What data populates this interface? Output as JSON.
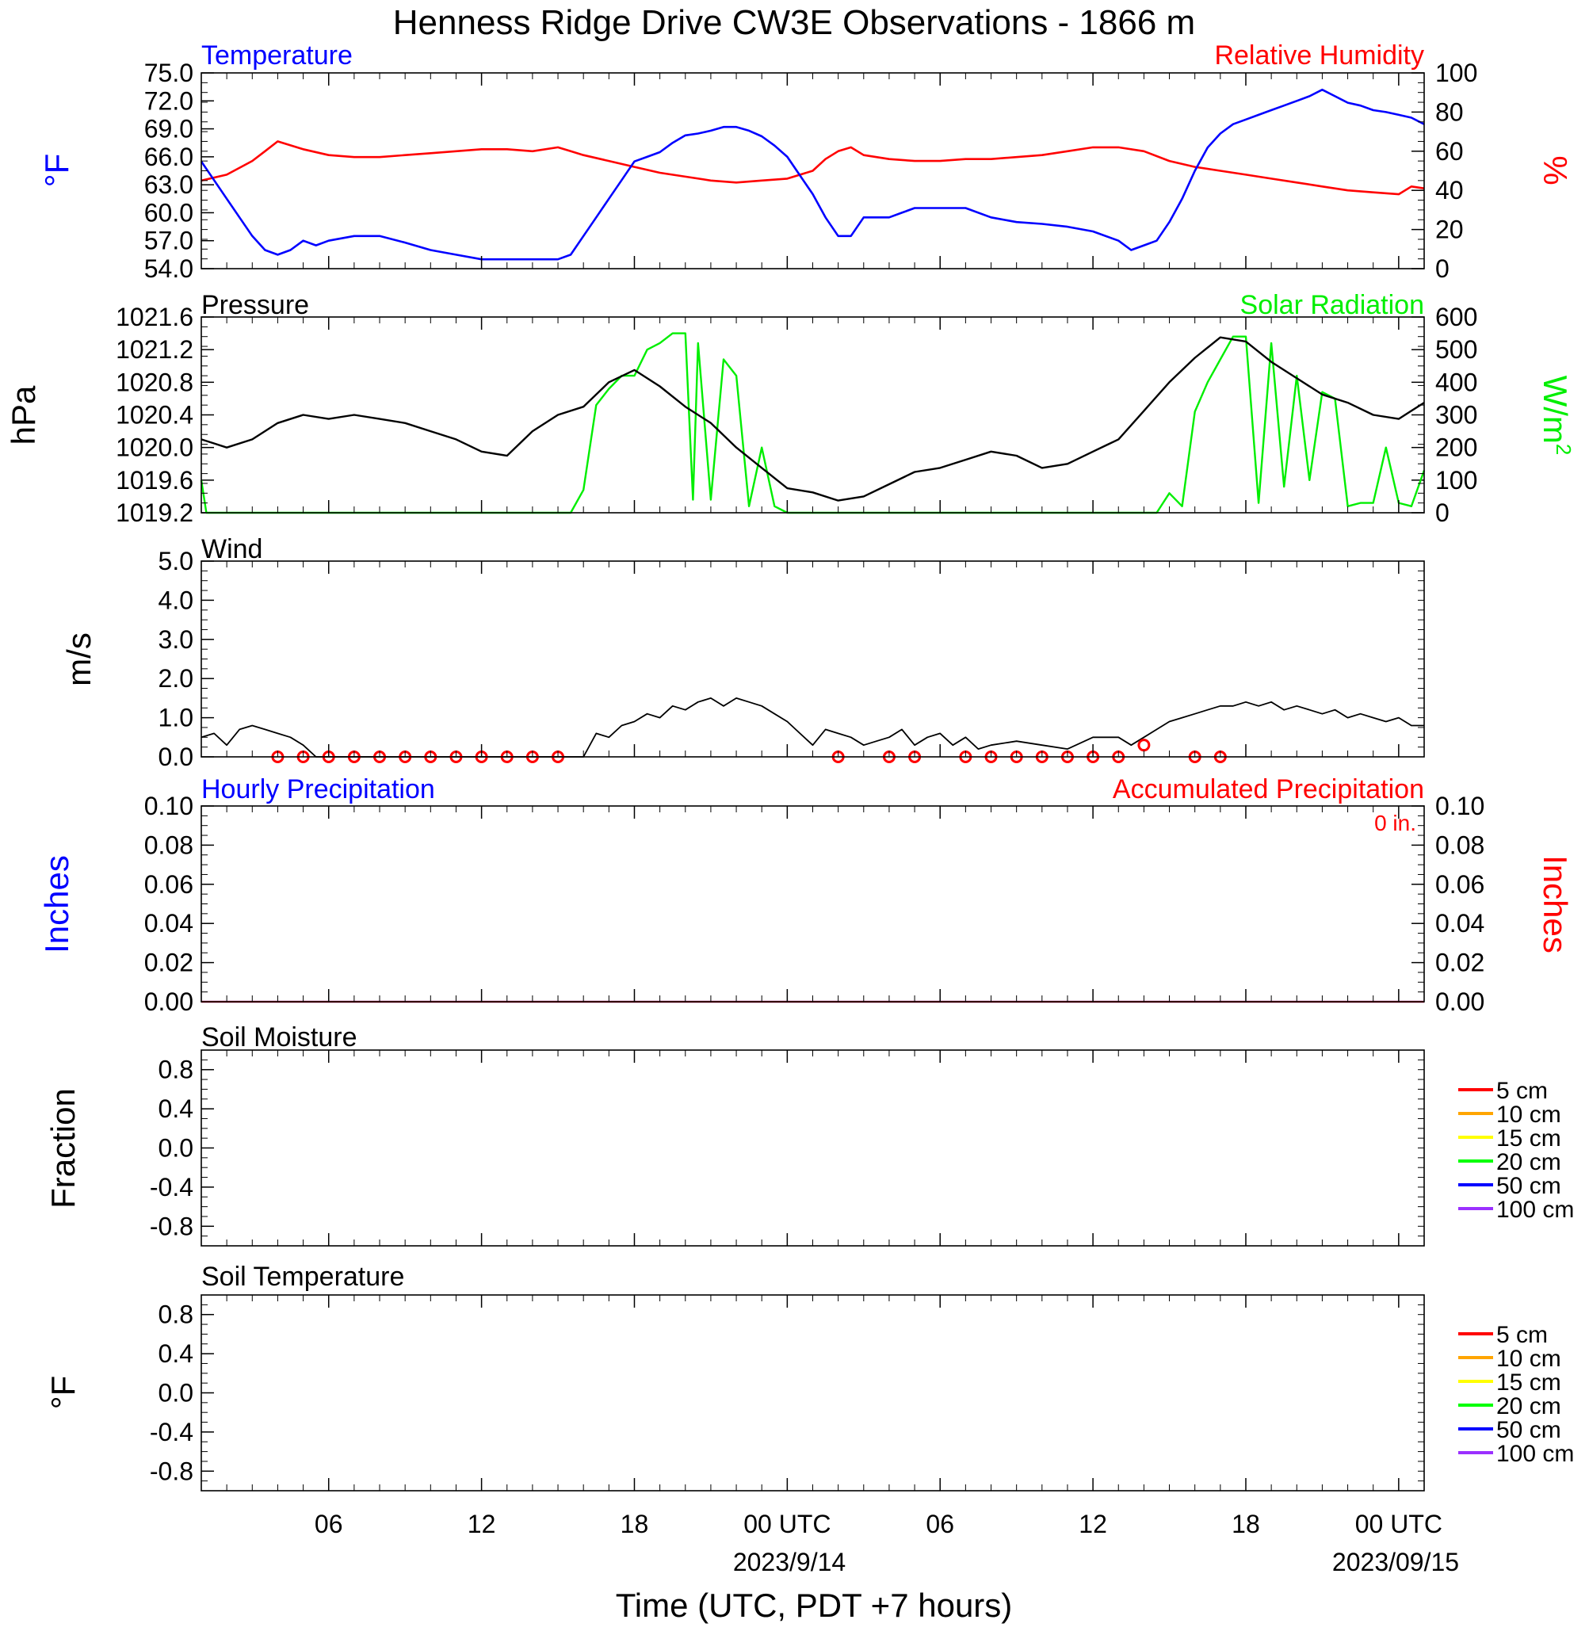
{
  "title": "Henness Ridge Drive CW3E Observations - 1866 m",
  "x_axis": {
    "label": "Time (UTC, PDT +7 hours)",
    "tick_labels": [
      "06",
      "12",
      "18",
      "00 UTC",
      "06",
      "12",
      "18",
      "00 UTC"
    ],
    "date_labels": [
      "2023/9/14",
      "2023/09/15"
    ],
    "range_hours_utc": [
      1,
      49
    ]
  },
  "colors": {
    "temperature": "#0000ff",
    "humidity": "#ff0000",
    "pressure": "#000000",
    "solar": "#00ee00",
    "wind": "#000000",
    "wind_barb": "#ff0000",
    "precip_hourly": "#0000ff",
    "precip_accum": "#ff0000"
  },
  "panels": {
    "temperature": {
      "left_title": "Temperature",
      "right_title": "Relative Humidity",
      "left_unit": "°F",
      "right_unit": "%",
      "left_ticks": [
        "75.0",
        "72.0",
        "69.0",
        "66.0",
        "63.0",
        "60.0",
        "57.0",
        "54.0"
      ],
      "right_ticks": [
        "100",
        "80",
        "60",
        "40",
        "20",
        "0"
      ]
    },
    "pressure": {
      "left_title": "Pressure",
      "right_title": "Solar Radiation",
      "left_unit": "hPa",
      "right_unit_main": "W/m",
      "right_unit_sup": "2",
      "left_ticks": [
        "1021.6",
        "1021.2",
        "1020.8",
        "1020.4",
        "1020.0",
        "1019.6",
        "1019.2"
      ],
      "right_ticks": [
        "600",
        "500",
        "400",
        "300",
        "200",
        "100",
        "0"
      ]
    },
    "wind": {
      "left_title": "Wind",
      "left_unit": "m/s",
      "left_ticks": [
        "5.0",
        "4.0",
        "3.0",
        "2.0",
        "1.0",
        "0.0"
      ]
    },
    "precip": {
      "left_title": "Hourly Precipitation",
      "right_title": "Accumulated Precipitation",
      "total_label": "0 in.",
      "left_unit": "Inches",
      "right_unit": "Inches",
      "left_ticks": [
        "0.10",
        "0.08",
        "0.06",
        "0.04",
        "0.02",
        "0.00"
      ],
      "right_ticks": [
        "0.10",
        "0.08",
        "0.06",
        "0.04",
        "0.02",
        "0.00"
      ]
    },
    "soil_moisture": {
      "left_title": "Soil Moisture",
      "left_unit": "Fraction",
      "left_ticks": [
        "0.8",
        "0.4",
        "0.0",
        "-0.4",
        "-0.8"
      ],
      "legend": [
        {
          "label": "5 cm",
          "color": "#ff0000"
        },
        {
          "label": "10 cm",
          "color": "#ffa500"
        },
        {
          "label": "15 cm",
          "color": "#ffff00"
        },
        {
          "label": "20 cm",
          "color": "#00ff00"
        },
        {
          "label": "50 cm",
          "color": "#0000ff"
        },
        {
          "label": "100 cm",
          "color": "#9b30ff"
        }
      ]
    },
    "soil_temperature": {
      "left_title": "Soil Temperature",
      "left_unit": "°F",
      "left_ticks": [
        "0.8",
        "0.4",
        "0.0",
        "-0.4",
        "-0.8"
      ],
      "legend": [
        {
          "label": "5 cm",
          "color": "#ff0000"
        },
        {
          "label": "10 cm",
          "color": "#ffa500"
        },
        {
          "label": "15 cm",
          "color": "#ffff00"
        },
        {
          "label": "20 cm",
          "color": "#00ff00"
        },
        {
          "label": "50 cm",
          "color": "#0000ff"
        },
        {
          "label": "100 cm",
          "color": "#9b30ff"
        }
      ]
    }
  },
  "chart_data": [
    {
      "type": "line",
      "title": "Temperature",
      "ylabel": "°F",
      "ylim": [
        54,
        75
      ],
      "x_units": "hours UTC from 2023/9/13 00",
      "series": [
        {
          "name": "Temperature",
          "x": [
            1,
            1.5,
            2,
            2.5,
            3,
            3.5,
            4,
            4.5,
            5,
            5.5,
            6,
            7,
            8,
            9,
            10,
            11,
            12,
            13,
            14,
            15,
            15.5,
            16,
            16.5,
            17,
            17.5,
            18,
            18.5,
            19,
            19.5,
            20,
            20.5,
            21,
            21.5,
            22,
            22.5,
            23,
            23.5,
            24,
            24.5,
            25,
            25.5,
            26,
            26.5,
            27,
            27.5,
            28,
            28.5,
            29,
            30,
            31,
            32,
            33,
            34,
            35,
            36,
            37,
            37.5,
            38,
            38.5,
            39,
            39.5,
            40,
            40.5,
            41,
            41.5,
            42,
            42.5,
            43,
            43.5,
            44,
            44.5,
            45,
            45.5,
            46,
            46.5,
            47,
            47.5,
            48,
            48.5,
            49
          ],
          "values": [
            65.5,
            63.5,
            61.5,
            59.5,
            57.5,
            56,
            55.5,
            56,
            57,
            56.5,
            57,
            57.5,
            57.5,
            56.8,
            56,
            55.5,
            55,
            55,
            55,
            55,
            55.5,
            57.5,
            59.5,
            61.5,
            63.5,
            65.5,
            66,
            66.5,
            67.5,
            68.3,
            68.5,
            68.8,
            69.2,
            69.2,
            68.8,
            68.2,
            67.2,
            66,
            64,
            62,
            59.5,
            57.5,
            57.5,
            59.5,
            59.5,
            59.5,
            60,
            60.5,
            60.5,
            60.5,
            59.5,
            59,
            58.8,
            58.5,
            58,
            57,
            56,
            56.5,
            57,
            59,
            61.5,
            64.5,
            67,
            68.5,
            69.5,
            70,
            70.5,
            71,
            71.5,
            72,
            72.5,
            73.2,
            72.5,
            71.8,
            71.5,
            71,
            70.8,
            70.5,
            70.2,
            69.5
          ]
        }
      ]
    },
    {
      "type": "line",
      "title": "Relative Humidity",
      "ylabel": "%",
      "ylim": [
        0,
        100
      ],
      "series": [
        {
          "name": "Relative Humidity",
          "x": [
            1,
            2,
            3,
            3.5,
            4,
            5,
            6,
            7,
            8,
            9,
            10,
            11,
            12,
            13,
            14,
            15,
            15.5,
            16,
            17,
            18,
            19,
            20,
            21,
            22,
            23,
            24,
            25,
            25.5,
            26,
            26.5,
            27,
            28,
            29,
            30,
            31,
            32,
            33,
            34,
            35,
            36,
            37,
            38,
            39,
            40,
            41,
            42,
            43,
            44,
            45,
            46,
            47,
            48,
            48.5,
            49
          ],
          "values": [
            45,
            48,
            55,
            60,
            65,
            61,
            58,
            57,
            57,
            58,
            59,
            60,
            61,
            61,
            60,
            62,
            60,
            58,
            55,
            52,
            49,
            47,
            45,
            44,
            45,
            46,
            50,
            56,
            60,
            62,
            58,
            56,
            55,
            55,
            56,
            56,
            57,
            58,
            60,
            62,
            62,
            60,
            55,
            52,
            50,
            48,
            46,
            44,
            42,
            40,
            39,
            38,
            42,
            41
          ]
        }
      ]
    },
    {
      "type": "line",
      "title": "Pressure",
      "ylabel": "hPa",
      "ylim": [
        1019.2,
        1021.6
      ],
      "series": [
        {
          "name": "Pressure",
          "x": [
            1,
            1.5,
            2,
            3,
            4,
            5,
            6,
            7,
            8,
            9,
            10,
            11,
            12,
            13,
            14,
            15,
            16,
            17,
            18,
            19,
            20,
            21,
            22,
            23,
            24,
            25,
            26,
            27,
            28,
            29,
            30,
            31,
            32,
            33,
            34,
            35,
            36,
            37,
            38,
            39,
            40,
            41,
            42,
            43,
            44,
            45,
            46,
            47,
            48,
            49
          ],
          "values": [
            1020.1,
            1020.05,
            1020.0,
            1020.1,
            1020.3,
            1020.4,
            1020.35,
            1020.4,
            1020.35,
            1020.3,
            1020.2,
            1020.1,
            1019.95,
            1019.9,
            1020.2,
            1020.4,
            1020.5,
            1020.8,
            1020.95,
            1020.75,
            1020.5,
            1020.3,
            1020.0,
            1019.75,
            1019.5,
            1019.45,
            1019.35,
            1019.4,
            1019.55,
            1019.7,
            1019.75,
            1019.85,
            1019.95,
            1019.9,
            1019.75,
            1019.8,
            1019.95,
            1020.1,
            1020.45,
            1020.8,
            1021.1,
            1021.35,
            1021.3,
            1021.05,
            1020.85,
            1020.65,
            1020.55,
            1020.4,
            1020.35,
            1020.55
          ]
        }
      ]
    },
    {
      "type": "line",
      "title": "Solar Radiation",
      "ylabel": "W/m2",
      "ylim": [
        0,
        600
      ],
      "series": [
        {
          "name": "Solar Radiation",
          "x": [
            1,
            1.1,
            1.2,
            15.5,
            16,
            16.5,
            17,
            17.5,
            18,
            18.5,
            19,
            19.5,
            20,
            20.3,
            20.5,
            21,
            21.5,
            22,
            22.5,
            23,
            23.5,
            24,
            24.5,
            25,
            25.5,
            26,
            38.5,
            39,
            39.5,
            40,
            40.5,
            41,
            41.5,
            42,
            42.5,
            43,
            43.5,
            44,
            44.5,
            45,
            45.5,
            46,
            46.5,
            47,
            47.5,
            48,
            48.5,
            49
          ],
          "values": [
            100,
            50,
            0,
            0,
            70,
            330,
            380,
            420,
            420,
            500,
            520,
            550,
            550,
            40,
            520,
            40,
            470,
            420,
            20,
            200,
            20,
            0,
            0,
            0,
            0,
            0,
            0,
            60,
            20,
            310,
            400,
            470,
            540,
            540,
            30,
            520,
            80,
            420,
            100,
            370,
            350,
            20,
            30,
            30,
            200,
            30,
            20,
            130
          ]
        }
      ]
    },
    {
      "type": "line",
      "title": "Wind",
      "ylabel": "m/s",
      "ylim": [
        0,
        5
      ],
      "series": [
        {
          "name": "Wind Speed",
          "x": [
            1,
            1.5,
            2,
            2.5,
            3,
            3.5,
            4,
            4.5,
            5,
            5.5,
            6,
            15,
            16,
            16.5,
            17,
            17.5,
            18,
            18.5,
            19,
            19.5,
            20,
            20.5,
            21,
            21.5,
            22,
            22.5,
            23,
            23.5,
            24,
            24.5,
            25,
            25.5,
            26,
            26.5,
            27,
            27.5,
            28,
            28.5,
            29,
            29.5,
            30,
            30.5,
            31,
            31.5,
            32,
            33,
            34,
            35,
            36,
            37,
            37.5,
            38,
            38.5,
            39,
            39.5,
            40,
            40.5,
            41,
            41.5,
            42,
            42.5,
            43,
            43.5,
            44,
            44.5,
            45,
            45.5,
            46,
            46.5,
            47,
            47.5,
            48,
            48.5,
            49
          ],
          "values": [
            0.5,
            0.6,
            0.3,
            0.7,
            0.8,
            0.7,
            0.6,
            0.5,
            0.3,
            0,
            0,
            0,
            0,
            0.6,
            0.5,
            0.8,
            0.9,
            1.1,
            1.0,
            1.3,
            1.2,
            1.4,
            1.5,
            1.3,
            1.5,
            1.4,
            1.3,
            1.1,
            0.9,
            0.6,
            0.3,
            0.7,
            0.6,
            0.5,
            0.3,
            0.4,
            0.5,
            0.7,
            0.3,
            0.5,
            0.6,
            0.3,
            0.5,
            0.2,
            0.3,
            0.4,
            0.3,
            0.2,
            0.5,
            0.5,
            0.3,
            0.5,
            0.7,
            0.9,
            1.0,
            1.1,
            1.2,
            1.3,
            1.3,
            1.4,
            1.3,
            1.4,
            1.2,
            1.3,
            1.2,
            1.1,
            1.2,
            1.0,
            1.1,
            1.0,
            0.9,
            1.0,
            0.8,
            0.8
          ]
        }
      ]
    },
    {
      "type": "scatter",
      "title": "Calm markers",
      "series": [
        {
          "name": "calm",
          "x": [
            4,
            5,
            6,
            7,
            8,
            9,
            10,
            11,
            12,
            13,
            14,
            15,
            26,
            28,
            29,
            31,
            32,
            33,
            34,
            35,
            36,
            37,
            38,
            40,
            41
          ],
          "values": [
            0,
            0,
            0,
            0,
            0,
            0,
            0,
            0,
            0,
            0,
            0,
            0,
            0,
            0,
            0,
            0,
            0,
            0,
            0,
            0,
            0,
            0,
            0.3,
            0,
            0
          ]
        }
      ]
    },
    {
      "type": "line",
      "title": "Hourly Precipitation",
      "ylabel": "Inches",
      "ylim": [
        0,
        0.1
      ],
      "series": [
        {
          "name": "Hourly Precipitation",
          "x": [
            1,
            49
          ],
          "values": [
            0,
            0
          ]
        },
        {
          "name": "Accumulated Precipitation",
          "x": [
            1,
            49
          ],
          "values": [
            0,
            0
          ]
        }
      ]
    },
    {
      "type": "line",
      "title": "Soil Moisture",
      "ylabel": "Fraction",
      "ylim": [
        -1,
        1
      ],
      "series": []
    },
    {
      "type": "line",
      "title": "Soil Temperature",
      "ylabel": "°F",
      "ylim": [
        -1,
        1
      ],
      "series": []
    }
  ]
}
